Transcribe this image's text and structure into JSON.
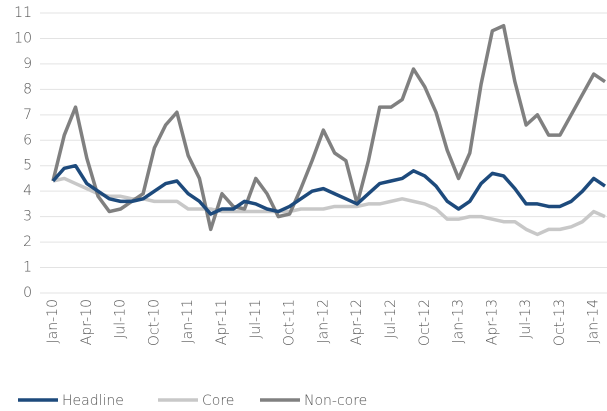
{
  "chart_data": {
    "type": "line",
    "categories": [
      "Jan-10",
      null,
      null,
      "Apr-10",
      null,
      null,
      "Jul-10",
      null,
      null,
      "Oct-10",
      null,
      null,
      "Jan-11",
      null,
      null,
      "Apr-11",
      null,
      null,
      "Jul-11",
      null,
      null,
      "Oct-11",
      null,
      null,
      "Jan-12",
      null,
      null,
      "Apr-12",
      null,
      null,
      "Jul-12",
      null,
      null,
      "Oct-12",
      null,
      null,
      "Jan-13",
      null,
      null,
      "Apr-13",
      null,
      null,
      "Jul-13",
      null,
      null,
      "Oct-13",
      null,
      null,
      "Jan-14",
      null
    ],
    "series": [
      {
        "name": "Headline",
        "color": "#1d4a7c",
        "values": [
          4.4,
          4.9,
          5.0,
          4.3,
          4.0,
          3.7,
          3.6,
          3.6,
          3.7,
          4.0,
          4.3,
          4.4,
          3.9,
          3.6,
          3.1,
          3.3,
          3.3,
          3.6,
          3.5,
          3.3,
          3.2,
          3.4,
          3.7,
          4.0,
          4.1,
          3.9,
          3.7,
          3.5,
          3.9,
          4.3,
          4.4,
          4.5,
          4.8,
          4.6,
          4.2,
          3.6,
          3.3,
          3.6,
          4.3,
          4.7,
          4.6,
          4.1,
          3.5,
          3.5,
          3.4,
          3.4,
          3.6,
          4.0,
          4.5,
          4.2
        ]
      },
      {
        "name": "Core",
        "color": "#c8c8c8",
        "values": [
          4.4,
          4.5,
          4.3,
          4.1,
          3.9,
          3.8,
          3.8,
          3.7,
          3.7,
          3.6,
          3.6,
          3.6,
          3.3,
          3.3,
          3.3,
          3.2,
          3.2,
          3.2,
          3.2,
          3.2,
          3.2,
          3.2,
          3.3,
          3.3,
          3.3,
          3.4,
          3.4,
          3.4,
          3.5,
          3.5,
          3.6,
          3.7,
          3.6,
          3.5,
          3.3,
          2.9,
          2.9,
          3.0,
          3.0,
          2.9,
          2.8,
          2.8,
          2.5,
          2.3,
          2.5,
          2.5,
          2.6,
          2.8,
          3.2,
          3.0
        ]
      },
      {
        "name": "Non-core",
        "color": "#808080",
        "values": [
          4.4,
          6.2,
          7.3,
          5.3,
          3.8,
          3.2,
          3.3,
          3.6,
          3.9,
          5.7,
          6.6,
          7.1,
          5.4,
          4.5,
          2.5,
          3.9,
          3.4,
          3.3,
          4.5,
          3.9,
          3.0,
          3.1,
          4.1,
          5.2,
          6.4,
          5.5,
          5.2,
          3.5,
          5.2,
          7.3,
          7.3,
          7.6,
          8.8,
          8.1,
          7.1,
          5.6,
          4.5,
          5.5,
          8.2,
          10.3,
          10.5,
          8.3,
          6.6,
          7.0,
          6.2,
          6.2,
          7.0,
          7.8,
          8.6,
          8.3
        ]
      }
    ],
    "ylim": [
      0,
      11
    ],
    "yticks": [
      0,
      1,
      2,
      3,
      4,
      5,
      6,
      7,
      8,
      9,
      10,
      11
    ],
    "grid": true,
    "legend": "bottom"
  }
}
